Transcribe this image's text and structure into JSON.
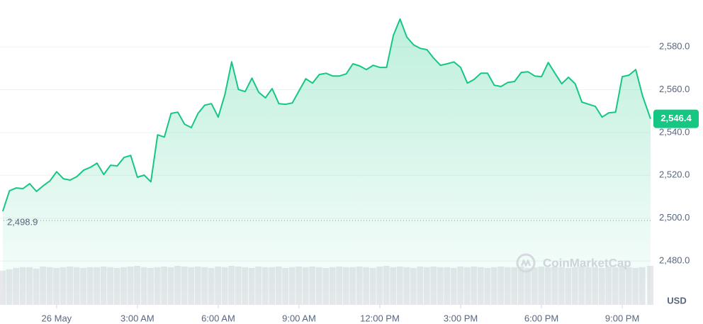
{
  "chart_data": {
    "type": "line",
    "x": [
      -2,
      -1.75,
      -1.5,
      -1.25,
      -1,
      -0.75,
      -0.5,
      -0.25,
      0,
      0.25,
      0.5,
      0.75,
      1,
      1.25,
      1.5,
      1.75,
      2,
      2.25,
      2.5,
      2.75,
      3,
      3.25,
      3.5,
      3.75,
      4,
      4.25,
      4.5,
      4.75,
      5,
      5.25,
      5.5,
      5.75,
      6,
      6.25,
      6.5,
      6.75,
      7,
      7.25,
      7.5,
      7.75,
      8,
      8.25,
      8.5,
      8.75,
      9,
      9.25,
      9.5,
      9.75,
      10,
      10.25,
      10.5,
      10.75,
      11,
      11.25,
      11.5,
      11.75,
      12,
      12.25,
      12.5,
      12.75,
      13,
      13.25,
      13.5,
      13.75,
      14,
      14.25,
      14.5,
      14.75,
      15,
      15.25,
      15.5,
      15.75,
      16,
      16.25,
      16.5,
      16.75,
      17,
      17.25,
      17.5,
      17.75,
      18,
      18.25,
      18.5,
      18.75,
      19,
      19.25,
      19.5,
      19.75,
      20,
      20.25,
      20.5,
      20.75,
      21,
      21.25,
      21.5,
      21.75,
      22.05
    ],
    "series": [
      {
        "color": "#16c784",
        "values": [
          2503.2,
          2512.8,
          2514.1,
          2513.8,
          2516.1,
          2512.5,
          2515.1,
          2517.4,
          2521.7,
          2518.4,
          2517.8,
          2519.4,
          2522.4,
          2523.7,
          2525.7,
          2520.4,
          2524.7,
          2524.4,
          2528.3,
          2529.3,
          2519.1,
          2520.1,
          2517.0,
          2538.9,
          2537.9,
          2548.9,
          2549.5,
          2543.9,
          2542.3,
          2548.9,
          2552.8,
          2553.5,
          2547.2,
          2557.8,
          2573.0,
          2560.1,
          2559.1,
          2565.4,
          2558.8,
          2556.2,
          2560.5,
          2553.5,
          2553.2,
          2553.8,
          2559.5,
          2565.1,
          2563.1,
          2567.1,
          2567.7,
          2566.4,
          2566.4,
          2567.4,
          2572.1,
          2571.1,
          2569.4,
          2571.4,
          2570.4,
          2570.4,
          2585.3,
          2593.0,
          2584.6,
          2581.0,
          2579.3,
          2578.7,
          2574.7,
          2571.4,
          2572.1,
          2573.0,
          2570.4,
          2563.1,
          2564.8,
          2567.7,
          2567.7,
          2562.1,
          2561.5,
          2563.4,
          2563.8,
          2568.1,
          2568.4,
          2566.4,
          2566.1,
          2572.7,
          2567.7,
          2562.8,
          2565.8,
          2562.8,
          2554.2,
          2553.2,
          2552.2,
          2547.2,
          2549.2,
          2549.5,
          2566.1,
          2566.8,
          2569.4,
          2557.2,
          2546.4
        ]
      }
    ],
    "volume": {
      "color": "#e8e8ec",
      "values": [
        50,
        52,
        54,
        55,
        55,
        53,
        56,
        55,
        54,
        55,
        56,
        55,
        54,
        55,
        55,
        56,
        55,
        54,
        55,
        56,
        57,
        55,
        54,
        55,
        56,
        55,
        57,
        56,
        55,
        56,
        55,
        54,
        56,
        55,
        57,
        56,
        55,
        54,
        56,
        55,
        55,
        56,
        54,
        55,
        56,
        55,
        56,
        55,
        54,
        55,
        56,
        55,
        55,
        56,
        55,
        54,
        56,
        57,
        55,
        56,
        55,
        54,
        56,
        55,
        56,
        55,
        55,
        54,
        56,
        55,
        56,
        55,
        54,
        55,
        56,
        55,
        55,
        56,
        54,
        55,
        56,
        55,
        56,
        55,
        54,
        55,
        56,
        55,
        55,
        54,
        56,
        55,
        56,
        55,
        54,
        55,
        57
      ]
    },
    "reference_price": {
      "value": 2498.9,
      "label": "2,498.9"
    },
    "last_price": {
      "value": 2546.4,
      "label": "2,546.4"
    },
    "xlim": [
      -1.97,
      22.05
    ],
    "xticks": [
      {
        "value": 0,
        "label": "26 May"
      },
      {
        "value": 3,
        "label": "3:00 AM"
      },
      {
        "value": 6,
        "label": "6:00 AM"
      },
      {
        "value": 9,
        "label": "9:00 AM"
      },
      {
        "value": 12,
        "label": "12:00 PM"
      },
      {
        "value": 15,
        "label": "3:00 PM"
      },
      {
        "value": 18,
        "label": "6:00 PM"
      },
      {
        "value": 21,
        "label": "9:00 PM"
      }
    ],
    "ylim": [
      2459.5,
      2601.9
    ],
    "yticks": [
      {
        "value": 2480,
        "label": "2,480.0"
      },
      {
        "value": 2500,
        "label": "2,500.0"
      },
      {
        "value": 2520,
        "label": "2,520.0"
      },
      {
        "value": 2540,
        "label": "2,540.0"
      },
      {
        "value": 2560,
        "label": "2,560.0"
      },
      {
        "value": 2580,
        "label": "2,580.0"
      }
    ],
    "currency": "USD",
    "watermark": "CoinMarketCap",
    "grid": true
  }
}
